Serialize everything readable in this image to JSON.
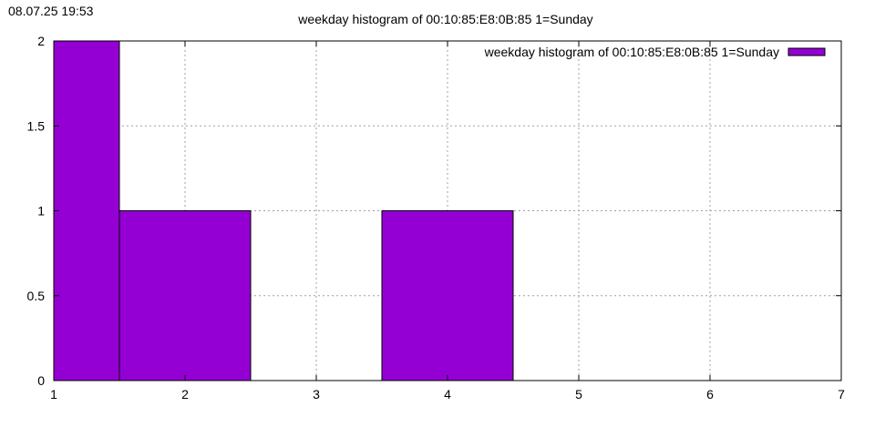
{
  "timestamp": "08.07.25 19:53",
  "colors": {
    "bar": "#9400d3",
    "grid": "#a0a0a0",
    "axis": "#000000"
  },
  "chart_data": {
    "type": "bar",
    "title": "weekday histogram of 00:10:85:E8:0B:85 1=Sunday",
    "xlabel": "",
    "ylabel": "",
    "xlim": [
      1,
      7
    ],
    "ylim": [
      0,
      2
    ],
    "xticks": [
      "1",
      "2",
      "3",
      "4",
      "5",
      "6",
      "7"
    ],
    "yticks": [
      "0",
      "0.5",
      "1",
      "1.5",
      "2"
    ],
    "grid": true,
    "legend_position": "top-right",
    "series": [
      {
        "name": "weekday histogram of 00:10:85:E8:0B:85 1=Sunday",
        "bins": [
          {
            "from": 1,
            "to": 1.5,
            "value": 2
          },
          {
            "from": 1.5,
            "to": 2.5,
            "value": 1
          },
          {
            "from": 3.5,
            "to": 4.5,
            "value": 1
          }
        ]
      }
    ]
  }
}
